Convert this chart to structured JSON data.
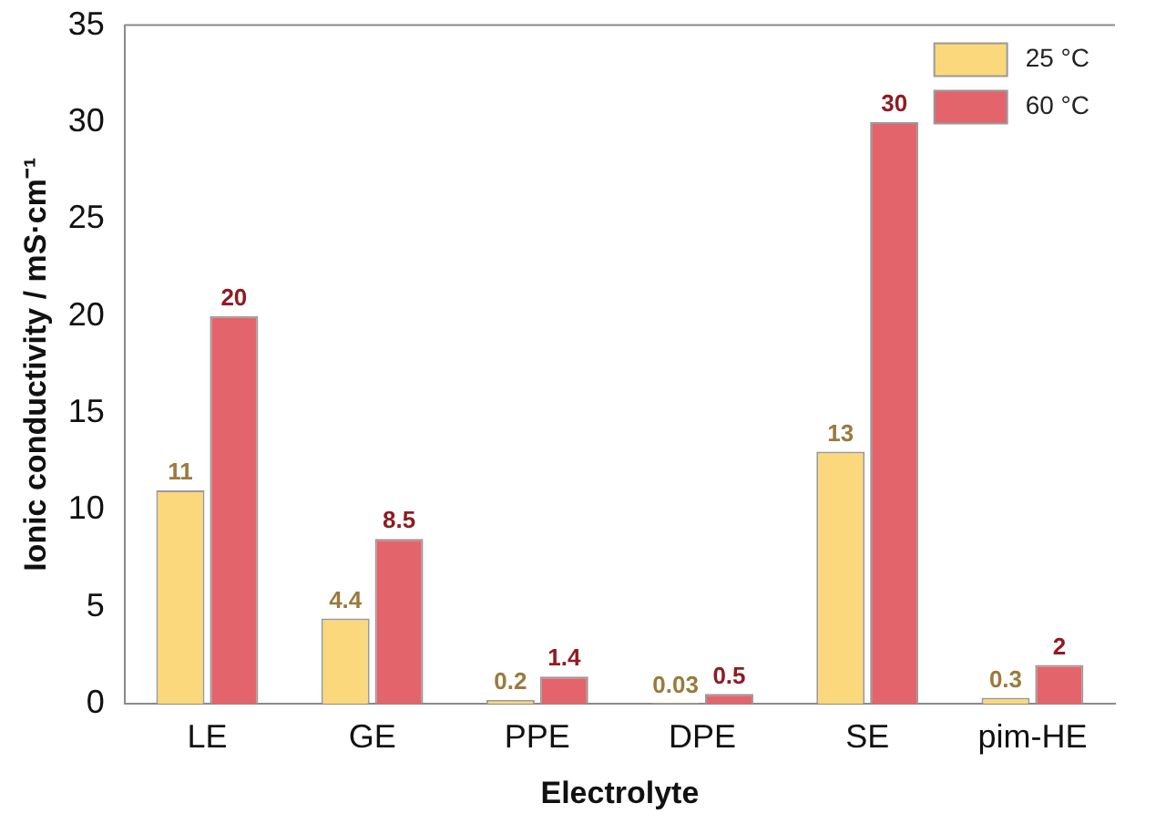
{
  "chart_data": {
    "type": "bar",
    "xlabel": "Electrolyte",
    "ylabel": "Ionic conductivity / mS·cm⁻¹",
    "categories": [
      "LE",
      "GE",
      "PPE",
      "DPE",
      "SE",
      "pim-HE"
    ],
    "series": [
      {
        "name": "25 °C",
        "color": "#fcd87c",
        "values": [
          11,
          4.4,
          0.2,
          0.03,
          13,
          0.3
        ]
      },
      {
        "name": "60 °C",
        "color": "#e4646c",
        "values": [
          20,
          8.5,
          1.4,
          0.5,
          30,
          2
        ]
      }
    ],
    "ylim": [
      0,
      35
    ],
    "yticks": [
      0,
      5,
      10,
      15,
      20,
      25,
      30,
      35
    ],
    "grid": false,
    "legend": "top right",
    "data_labels": true
  }
}
